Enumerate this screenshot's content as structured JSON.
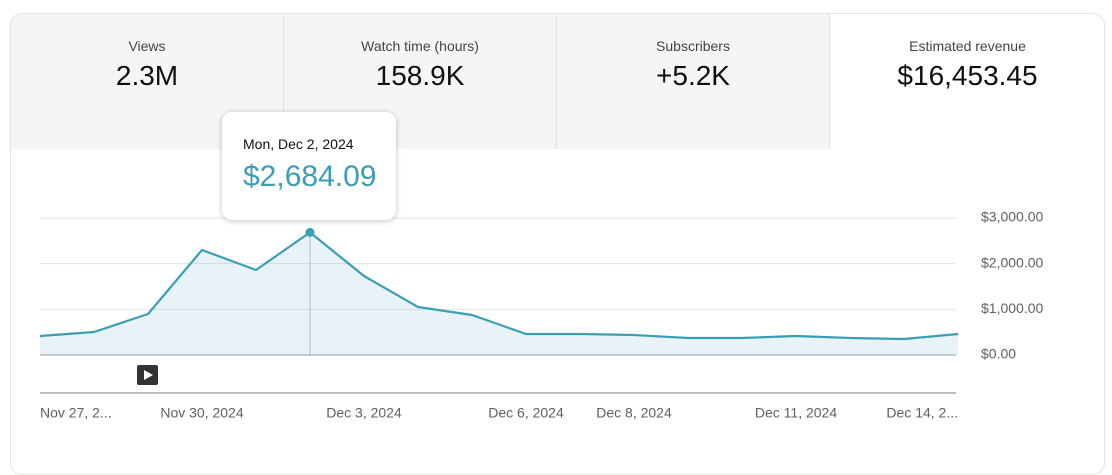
{
  "cards": [
    {
      "label": "Views",
      "value": "2.3M"
    },
    {
      "label": "Watch time (hours)",
      "value": "158.9K"
    },
    {
      "label": "Subscribers",
      "value": "+5.2K"
    },
    {
      "label": "Estimated revenue",
      "value": "$16,453.45"
    }
  ],
  "tooltip": {
    "date": "Mon, Dec 2, 2024",
    "value": "$2,684.09",
    "index": 5
  },
  "chart_data": {
    "type": "line",
    "categories": [
      "Nov 27, 2...",
      null,
      null,
      "Nov 30, 2024",
      null,
      null,
      "Dec 3, 2024",
      null,
      null,
      "Dec 6, 2024",
      null,
      "Dec 8, 2024",
      null,
      null,
      "Dec 11, 2024",
      null,
      null,
      "Dec 14, 2..."
    ],
    "values": [
      416,
      504,
      898,
      2299,
      1861,
      2684.09,
      1730,
      1051,
      876,
      460,
      460,
      438,
      372,
      372,
      416,
      372,
      350,
      460
    ],
    "color": "#3a9fb5",
    "ylim": [
      0,
      3000
    ],
    "yticks": [
      {
        "value": 0,
        "label": "$0.00"
      },
      {
        "value": 1000,
        "label": "$1,000.00"
      },
      {
        "value": 2000,
        "label": "$2,000.00"
      },
      {
        "value": 3000,
        "label": "$3,000.00"
      }
    ],
    "grid": true
  }
}
